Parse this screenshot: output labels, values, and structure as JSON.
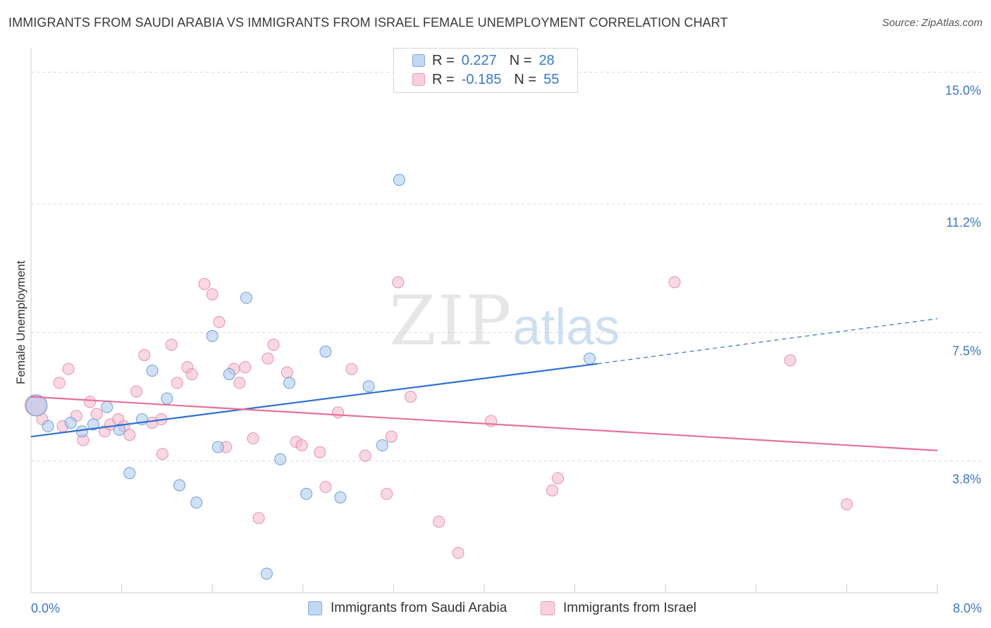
{
  "header": {
    "title": "IMMIGRANTS FROM SAUDI ARABIA VS IMMIGRANTS FROM ISRAEL FEMALE UNEMPLOYMENT CORRELATION CHART",
    "source": "Source: ZipAtlas.com"
  },
  "watermark": {
    "zip": "ZIP",
    "atlas": "atlas"
  },
  "legend": {
    "rows": [
      {
        "r_label": "R =",
        "r_value": "0.227",
        "n_label": "N =",
        "n_value": "28",
        "color": "#a9c8ef"
      },
      {
        "r_label": "R =",
        "r_value": "-0.185",
        "n_label": "N =",
        "n_value": "55",
        "color": "#f5b8cc"
      }
    ]
  },
  "bottom_legend": {
    "series_a": "Immigrants from Saudi Arabia",
    "series_b": "Immigrants from Israel"
  },
  "chart_data": {
    "type": "scatter",
    "title": "IMMIGRANTS FROM SAUDI ARABIA VS IMMIGRANTS FROM ISRAEL FEMALE UNEMPLOYMENT CORRELATION CHART",
    "xlabel": "",
    "ylabel": "Female Unemployment",
    "xlim": [
      0,
      8
    ],
    "ylim": [
      0,
      15.5
    ],
    "x_tick_labels": [
      "0.0%",
      "8.0%"
    ],
    "y_ticks": [
      3.8,
      7.5,
      11.2,
      15.0
    ],
    "y_tick_labels": [
      "3.8%",
      "7.5%",
      "11.2%",
      "15.0%"
    ],
    "grid": "horizontal-dashed",
    "series": [
      {
        "name": "Immigrants from Saudi Arabia",
        "color": "#a9c8ef",
        "stroke": "#6d9fd9",
        "line_color": "#2f72d0",
        "trend": {
          "x0": 0.0,
          "y0": 4.5,
          "x1": 5.0,
          "y1": 6.6,
          "dash_to_x": 8.0,
          "dash_to_y": 7.9
        },
        "points": [
          {
            "x": 0.05,
            "y": 5.4,
            "big": true
          },
          {
            "x": 0.15,
            "y": 4.8
          },
          {
            "x": 0.35,
            "y": 4.9
          },
          {
            "x": 0.55,
            "y": 4.85
          },
          {
            "x": 0.45,
            "y": 4.65
          },
          {
            "x": 0.78,
            "y": 4.7
          },
          {
            "x": 0.98,
            "y": 5.0
          },
          {
            "x": 0.67,
            "y": 5.35
          },
          {
            "x": 1.2,
            "y": 5.6
          },
          {
            "x": 1.07,
            "y": 6.4
          },
          {
            "x": 1.6,
            "y": 7.4
          },
          {
            "x": 1.9,
            "y": 8.5
          },
          {
            "x": 1.75,
            "y": 6.3
          },
          {
            "x": 2.28,
            "y": 6.05
          },
          {
            "x": 2.6,
            "y": 6.95
          },
          {
            "x": 2.98,
            "y": 5.95
          },
          {
            "x": 3.1,
            "y": 4.25
          },
          {
            "x": 1.65,
            "y": 4.2
          },
          {
            "x": 2.2,
            "y": 3.85
          },
          {
            "x": 0.87,
            "y": 3.45
          },
          {
            "x": 1.31,
            "y": 3.1
          },
          {
            "x": 1.46,
            "y": 2.6
          },
          {
            "x": 2.43,
            "y": 2.85
          },
          {
            "x": 2.73,
            "y": 2.75
          },
          {
            "x": 3.25,
            "y": 11.9
          },
          {
            "x": 2.08,
            "y": 0.55
          },
          {
            "x": 4.93,
            "y": 6.75
          }
        ]
      },
      {
        "name": "Immigrants from Israel",
        "color": "#f5b8cc",
        "stroke": "#e690ad",
        "line_color": "#e8719a",
        "trend": {
          "x0": 0.0,
          "y0": 5.65,
          "x1": 8.0,
          "y1": 4.1
        },
        "points": [
          {
            "x": 0.04,
            "y": 5.4,
            "big": true
          },
          {
            "x": 0.1,
            "y": 5.0
          },
          {
            "x": 0.25,
            "y": 6.05
          },
          {
            "x": 0.33,
            "y": 6.45
          },
          {
            "x": 0.28,
            "y": 4.8
          },
          {
            "x": 0.4,
            "y": 5.1
          },
          {
            "x": 0.46,
            "y": 4.4
          },
          {
            "x": 0.52,
            "y": 5.5
          },
          {
            "x": 0.58,
            "y": 5.15
          },
          {
            "x": 0.65,
            "y": 4.65
          },
          {
            "x": 0.7,
            "y": 4.85
          },
          {
            "x": 0.77,
            "y": 5.0
          },
          {
            "x": 0.82,
            "y": 4.8
          },
          {
            "x": 0.87,
            "y": 4.55
          },
          {
            "x": 0.93,
            "y": 5.8
          },
          {
            "x": 1.0,
            "y": 6.85
          },
          {
            "x": 1.07,
            "y": 4.9
          },
          {
            "x": 1.15,
            "y": 5.0
          },
          {
            "x": 1.16,
            "y": 4.0
          },
          {
            "x": 1.24,
            "y": 7.15
          },
          {
            "x": 1.29,
            "y": 6.05
          },
          {
            "x": 1.38,
            "y": 6.5
          },
          {
            "x": 1.42,
            "y": 6.3
          },
          {
            "x": 1.53,
            "y": 8.9
          },
          {
            "x": 1.6,
            "y": 8.6
          },
          {
            "x": 1.66,
            "y": 7.8
          },
          {
            "x": 1.72,
            "y": 4.2
          },
          {
            "x": 1.79,
            "y": 6.45
          },
          {
            "x": 1.84,
            "y": 6.05
          },
          {
            "x": 1.89,
            "y": 6.5
          },
          {
            "x": 1.96,
            "y": 4.45
          },
          {
            "x": 2.01,
            "y": 2.15
          },
          {
            "x": 2.09,
            "y": 6.75
          },
          {
            "x": 2.14,
            "y": 7.15
          },
          {
            "x": 2.26,
            "y": 6.35
          },
          {
            "x": 2.34,
            "y": 4.35
          },
          {
            "x": 2.39,
            "y": 4.25
          },
          {
            "x": 2.55,
            "y": 4.05
          },
          {
            "x": 2.6,
            "y": 3.05
          },
          {
            "x": 2.71,
            "y": 5.2
          },
          {
            "x": 2.83,
            "y": 6.45
          },
          {
            "x": 2.95,
            "y": 3.95
          },
          {
            "x": 3.14,
            "y": 2.85
          },
          {
            "x": 3.18,
            "y": 4.5
          },
          {
            "x": 3.24,
            "y": 8.95
          },
          {
            "x": 3.35,
            "y": 5.65
          },
          {
            "x": 3.6,
            "y": 2.05
          },
          {
            "x": 3.77,
            "y": 1.15
          },
          {
            "x": 4.06,
            "y": 4.95
          },
          {
            "x": 4.6,
            "y": 2.95
          },
          {
            "x": 4.65,
            "y": 3.3
          },
          {
            "x": 5.68,
            "y": 8.95
          },
          {
            "x": 6.7,
            "y": 6.7
          },
          {
            "x": 7.2,
            "y": 2.55
          }
        ]
      }
    ]
  }
}
